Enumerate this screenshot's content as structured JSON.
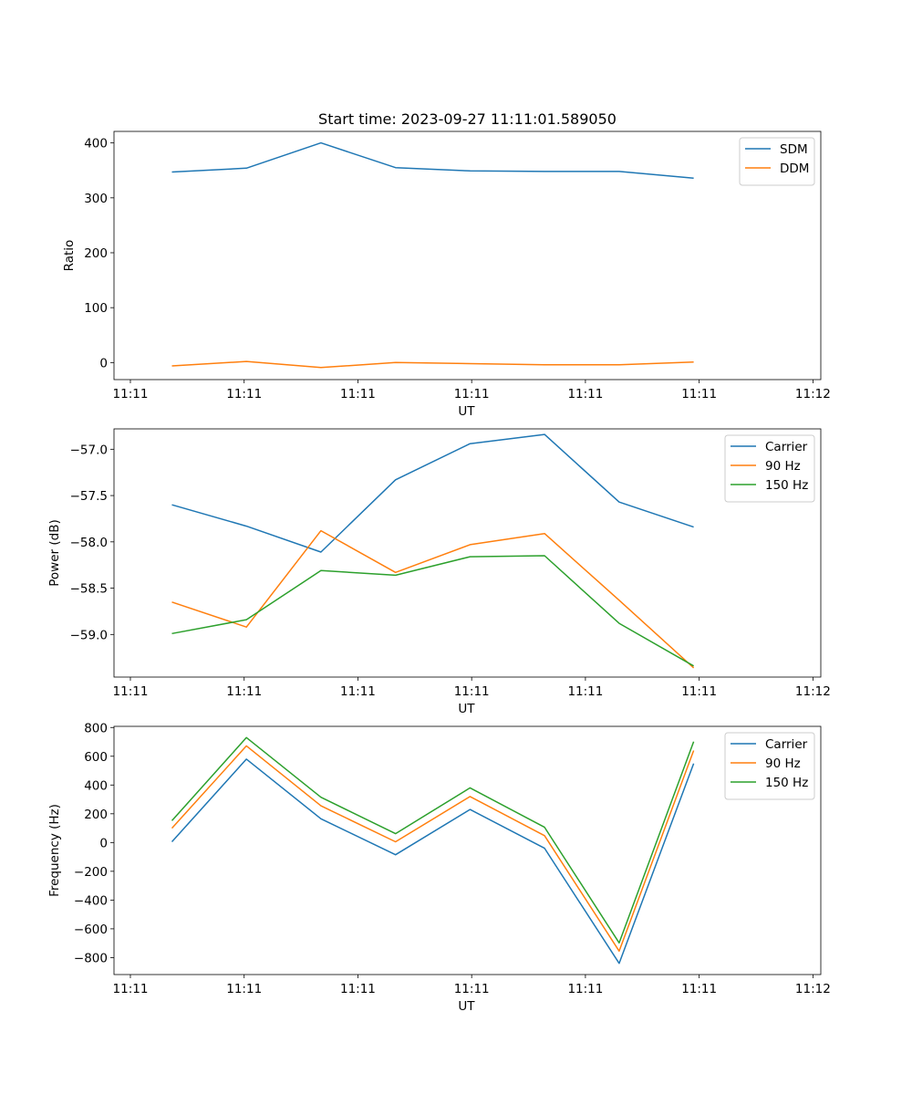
{
  "chart_data": [
    {
      "type": "line",
      "title": "Start time: 2023-09-27 11:11:01.589050",
      "xlabel": "UT",
      "ylabel": "Ratio",
      "xtick_labels": [
        "11:11",
        "11:11",
        "11:11",
        "11:11",
        "11:11",
        "11:11",
        "11:12"
      ],
      "ylim": [
        -31,
        421
      ],
      "yticks": [
        0,
        100,
        200,
        300,
        400
      ],
      "ytick_labels": [
        "0",
        "100",
        "200",
        "300",
        "400"
      ],
      "legend": "top-right",
      "x": [
        1,
        2,
        3,
        4,
        5,
        6,
        7,
        8
      ],
      "series": [
        {
          "name": "SDM",
          "color": "#1f77b4",
          "values": [
            347,
            354,
            400,
            355,
            349,
            348,
            348,
            336
          ]
        },
        {
          "name": "DDM",
          "color": "#ff7f0e",
          "values": [
            -6,
            2,
            -9,
            0,
            -2,
            -4,
            -4,
            1
          ]
        }
      ]
    },
    {
      "type": "line",
      "title": "",
      "xlabel": "UT",
      "ylabel": "Power (dB)",
      "xtick_labels": [
        "11:11",
        "11:11",
        "11:11",
        "11:11",
        "11:11",
        "11:11",
        "11:12"
      ],
      "ylim": [
        -59.46,
        -56.78
      ],
      "yticks": [
        -59.0,
        -58.5,
        -58.0,
        -57.5,
        -57.0
      ],
      "ytick_labels": [
        "−59.0",
        "−58.5",
        "−58.0",
        "−57.5",
        "−57.0"
      ],
      "legend": "top-right",
      "x": [
        1,
        2,
        3,
        4,
        5,
        6,
        7,
        8
      ],
      "series": [
        {
          "name": "Carrier",
          "color": "#1f77b4",
          "values": [
            -57.6,
            -57.83,
            -58.11,
            -57.33,
            -56.94,
            -56.84,
            -57.57,
            -57.84
          ]
        },
        {
          "name": "90 Hz",
          "color": "#ff7f0e",
          "values": [
            -58.65,
            -58.92,
            -57.88,
            -58.33,
            -58.03,
            -57.91,
            -58.63,
            -59.36
          ]
        },
        {
          "name": "150 Hz",
          "color": "#2ca02c",
          "values": [
            -58.99,
            -58.84,
            -58.31,
            -58.36,
            -58.16,
            -58.15,
            -58.88,
            -59.34
          ]
        }
      ]
    },
    {
      "type": "line",
      "title": "",
      "xlabel": "UT",
      "ylabel": "Frequency (Hz)",
      "xtick_labels": [
        "11:11",
        "11:11",
        "11:11",
        "11:11",
        "11:11",
        "11:11",
        "11:12"
      ],
      "ylim": [
        -918,
        808
      ],
      "yticks": [
        -800,
        -600,
        -400,
        -200,
        0,
        200,
        400,
        600,
        800
      ],
      "ytick_labels": [
        "−800",
        "−600",
        "−400",
        "−200",
        "0",
        "200",
        "400",
        "600",
        "800"
      ],
      "legend": "top-right",
      "x": [
        1,
        2,
        3,
        4,
        5,
        6,
        7,
        8
      ],
      "series": [
        {
          "name": "Carrier",
          "color": "#1f77b4",
          "values": [
            5,
            580,
            165,
            -85,
            230,
            -40,
            -840,
            550
          ]
        },
        {
          "name": "90 Hz",
          "color": "#ff7f0e",
          "values": [
            100,
            672,
            255,
            5,
            320,
            48,
            -755,
            640
          ]
        },
        {
          "name": "150 Hz",
          "color": "#2ca02c",
          "values": [
            152,
            730,
            315,
            62,
            380,
            106,
            -698,
            702
          ]
        }
      ]
    }
  ]
}
